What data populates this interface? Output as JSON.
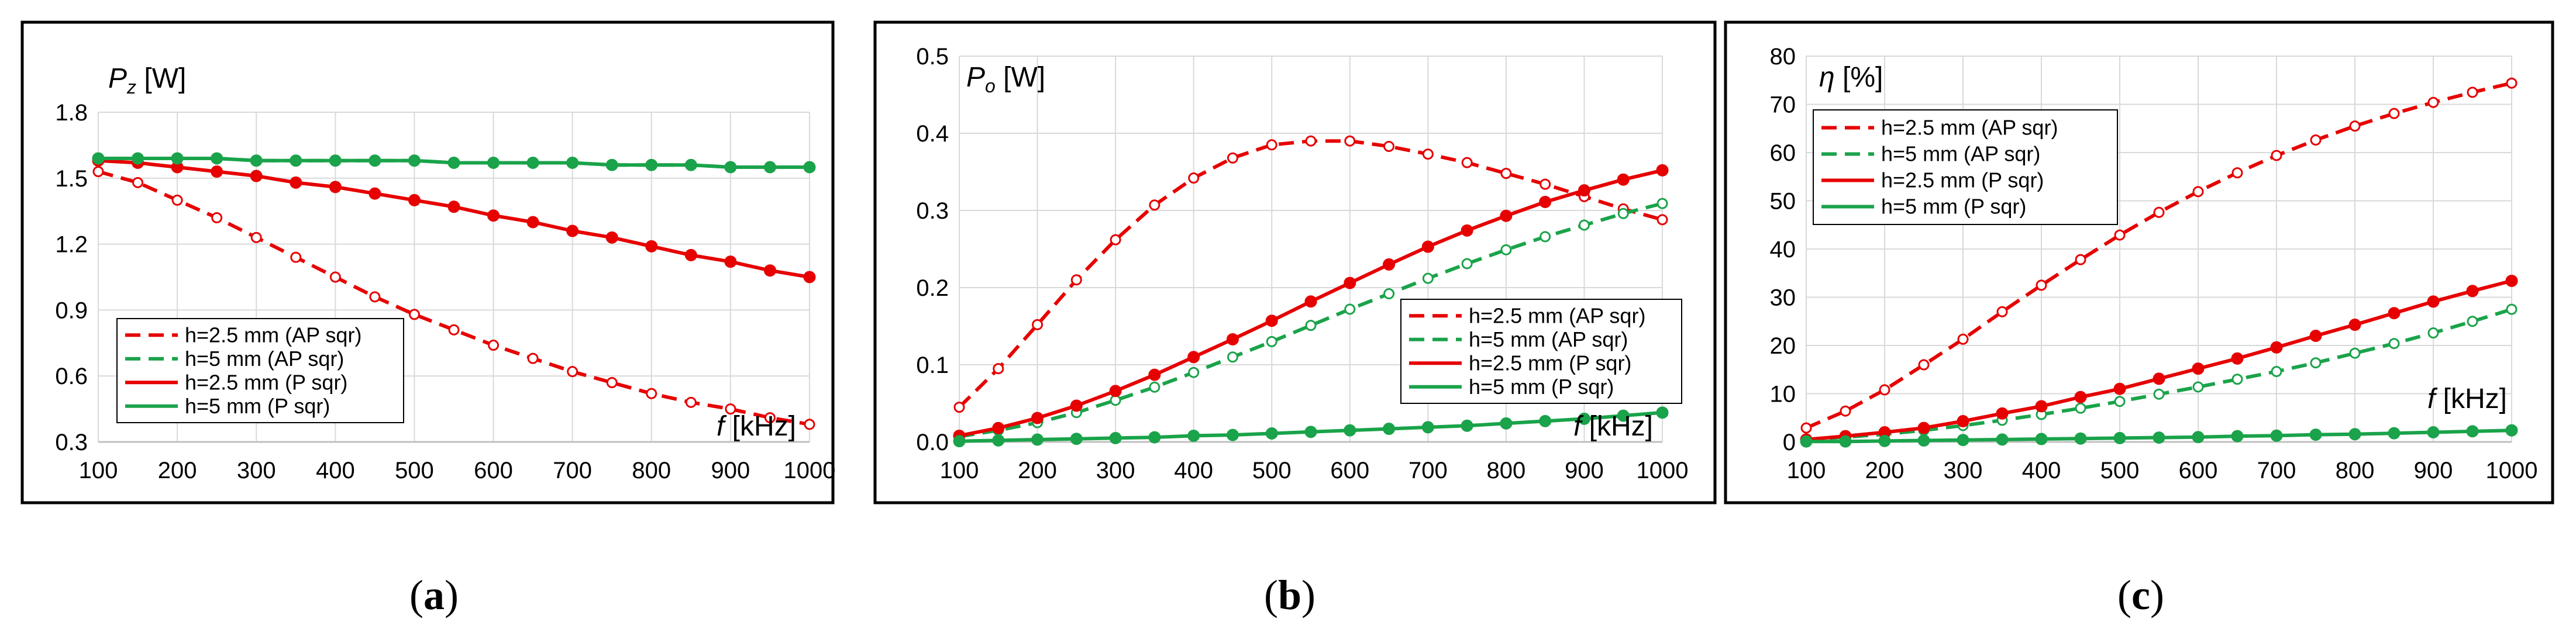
{
  "chart_data": [
    {
      "type": "line",
      "panel_label": "a",
      "ylabel_var": "P",
      "ylabel_sub": "z",
      "ylabel_unit": " [W]",
      "xlabel_var": "f",
      "xlabel_unit": " [kHz]",
      "legend_placement": "bottom-left",
      "grid": true,
      "xlim": [
        100,
        1000
      ],
      "ylim": [
        0.3,
        1.8
      ],
      "xticks": [
        "100",
        "200",
        "300",
        "400",
        "500",
        "600",
        "700",
        "800",
        "900",
        "1000"
      ],
      "yticks": [
        "0.3",
        "0.6",
        "0.9",
        "1.2",
        "1.5",
        "1.8"
      ],
      "x": [
        100,
        150,
        200,
        250,
        300,
        350,
        400,
        450,
        500,
        550,
        600,
        650,
        700,
        750,
        800,
        850,
        900,
        950,
        1000
      ],
      "series": [
        {
          "name": "h=2.5 mm (AP sqr)",
          "color": "#e60000",
          "dash": "dashed",
          "marker": "open",
          "values": [
            1.53,
            1.48,
            1.4,
            1.32,
            1.23,
            1.14,
            1.05,
            0.96,
            0.88,
            0.81,
            0.74,
            0.68,
            0.62,
            0.57,
            0.52,
            0.48,
            0.45,
            0.41,
            0.38
          ]
        },
        {
          "name": "h=5 mm (AP sqr)",
          "color": "#1aa34a",
          "dash": "dashed",
          "marker": "open",
          "values": [
            1.59,
            1.59,
            1.59,
            1.59,
            1.58,
            1.58,
            1.58,
            1.58,
            1.58,
            1.57,
            1.57,
            1.57,
            1.57,
            1.56,
            1.56,
            1.56,
            1.55,
            1.55,
            1.55
          ]
        },
        {
          "name": "h=2.5 mm (P sqr)",
          "color": "#e60000",
          "dash": "solid",
          "marker": "filled",
          "values": [
            1.58,
            1.57,
            1.55,
            1.53,
            1.51,
            1.48,
            1.46,
            1.43,
            1.4,
            1.37,
            1.33,
            1.3,
            1.26,
            1.23,
            1.19,
            1.15,
            1.12,
            1.08,
            1.05
          ]
        },
        {
          "name": "h=5 mm (P sqr)",
          "color": "#1aa34a",
          "dash": "solid",
          "marker": "filled",
          "values": [
            1.59,
            1.59,
            1.59,
            1.59,
            1.58,
            1.58,
            1.58,
            1.58,
            1.58,
            1.57,
            1.57,
            1.57,
            1.57,
            1.56,
            1.56,
            1.56,
            1.55,
            1.55,
            1.55
          ]
        }
      ]
    },
    {
      "type": "line",
      "panel_label": "b",
      "ylabel_var": "P",
      "ylabel_sub": "o",
      "ylabel_unit": " [W]",
      "xlabel_var": "f",
      "xlabel_unit": " [kHz]",
      "legend_placement": "bottom-right",
      "grid": true,
      "xlim": [
        100,
        1000
      ],
      "ylim": [
        0,
        0.5
      ],
      "xticks": [
        "100",
        "200",
        "300",
        "400",
        "500",
        "600",
        "700",
        "800",
        "900",
        "1000"
      ],
      "yticks": [
        "0.0",
        "0.1",
        "0.2",
        "0.3",
        "0.4",
        "0.5"
      ],
      "x": [
        100,
        150,
        200,
        250,
        300,
        350,
        400,
        450,
        500,
        550,
        600,
        650,
        700,
        750,
        800,
        850,
        900,
        950,
        1000
      ],
      "series": [
        {
          "name": "h=2.5 mm (AP sqr)",
          "color": "#e60000",
          "dash": "dashed",
          "marker": "open",
          "values": [
            0.045,
            0.095,
            0.152,
            0.21,
            0.262,
            0.307,
            0.342,
            0.368,
            0.385,
            0.39,
            0.39,
            0.383,
            0.373,
            0.362,
            0.348,
            0.334,
            0.318,
            0.302,
            0.288
          ]
        },
        {
          "name": "h=5 mm (AP sqr)",
          "color": "#1aa34a",
          "dash": "dashed",
          "marker": "open",
          "values": [
            0.007,
            0.015,
            0.025,
            0.038,
            0.054,
            0.071,
            0.09,
            0.11,
            0.13,
            0.151,
            0.172,
            0.192,
            0.212,
            0.231,
            0.249,
            0.266,
            0.281,
            0.296,
            0.309
          ]
        },
        {
          "name": "h=2.5 mm (P sqr)",
          "color": "#e60000",
          "dash": "solid",
          "marker": "filled",
          "values": [
            0.008,
            0.018,
            0.031,
            0.047,
            0.066,
            0.087,
            0.11,
            0.133,
            0.157,
            0.182,
            0.206,
            0.23,
            0.253,
            0.274,
            0.293,
            0.311,
            0.326,
            0.34,
            0.352
          ]
        },
        {
          "name": "h=5 mm (P sqr)",
          "color": "#1aa34a",
          "dash": "solid",
          "marker": "filled",
          "values": [
            0.001,
            0.002,
            0.003,
            0.004,
            0.005,
            0.006,
            0.008,
            0.009,
            0.011,
            0.013,
            0.015,
            0.017,
            0.019,
            0.021,
            0.024,
            0.027,
            0.03,
            0.034,
            0.038
          ]
        }
      ]
    },
    {
      "type": "line",
      "panel_label": "c",
      "ylabel_var": "η",
      "ylabel_sub": "",
      "ylabel_unit": " [%]",
      "xlabel_var": "f",
      "xlabel_unit": " [kHz]",
      "legend_placement": "top-left",
      "grid": true,
      "xlim": [
        100,
        1000
      ],
      "ylim": [
        0,
        80
      ],
      "xticks": [
        "100",
        "200",
        "300",
        "400",
        "500",
        "600",
        "700",
        "800",
        "900",
        "1000"
      ],
      "yticks": [
        "0",
        "10",
        "20",
        "30",
        "40",
        "50",
        "60",
        "70",
        "80"
      ],
      "x": [
        100,
        150,
        200,
        250,
        300,
        350,
        400,
        450,
        500,
        550,
        600,
        650,
        700,
        750,
        800,
        850,
        900,
        950,
        1000
      ],
      "series": [
        {
          "name": "h=2.5 mm (AP sqr)",
          "color": "#e60000",
          "dash": "dashed",
          "marker": "open",
          "values": [
            2.9,
            6.4,
            10.8,
            16.0,
            21.3,
            27.0,
            32.5,
            37.8,
            42.9,
            47.6,
            51.9,
            55.8,
            59.4,
            62.6,
            65.5,
            68.1,
            70.4,
            72.5,
            74.4
          ]
        },
        {
          "name": "h=5 mm (AP sqr)",
          "color": "#1aa34a",
          "dash": "dashed",
          "marker": "open",
          "values": [
            0.4,
            1.0,
            1.6,
            2.4,
            3.4,
            4.5,
            5.7,
            7.0,
            8.4,
            9.9,
            11.4,
            13.0,
            14.6,
            16.4,
            18.4,
            20.4,
            22.6,
            25.0,
            27.5
          ]
        },
        {
          "name": "h=2.5 mm (P sqr)",
          "color": "#e60000",
          "dash": "solid",
          "marker": "filled",
          "values": [
            0.5,
            1.2,
            2.0,
            2.9,
            4.3,
            5.9,
            7.4,
            9.3,
            11.0,
            13.1,
            15.2,
            17.3,
            19.6,
            22.0,
            24.3,
            26.7,
            29.1,
            31.3,
            33.4
          ]
        },
        {
          "name": "h=5 mm (P sqr)",
          "color": "#1aa34a",
          "dash": "solid",
          "marker": "filled",
          "values": [
            0.1,
            0.1,
            0.2,
            0.3,
            0.4,
            0.5,
            0.6,
            0.7,
            0.8,
            0.9,
            1.0,
            1.2,
            1.3,
            1.5,
            1.6,
            1.8,
            2.0,
            2.2,
            2.4
          ]
        }
      ]
    }
  ]
}
